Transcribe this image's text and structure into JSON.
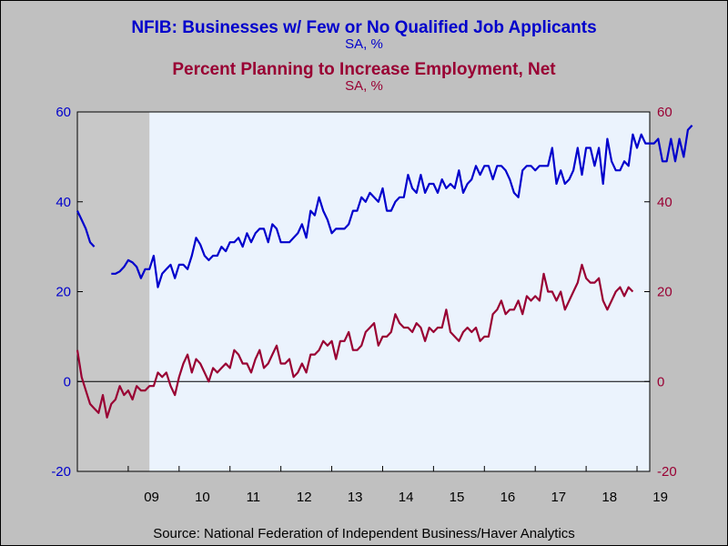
{
  "titles": {
    "series1_title": "NFIB: Businesses w/ Few or No Qualified Job Applicants",
    "series1_units": "SA, %",
    "series2_title": "Percent Planning to Increase Employment, Net",
    "series2_units": "SA, %"
  },
  "source": "Source:  National Federation of Independent Business/Haver Analytics",
  "colors": {
    "series1": "#0000cc",
    "series2": "#990033",
    "plot_bg": "#ebf3fd",
    "recession": "#c8c8c8",
    "page_bg": "#c0c0c0"
  },
  "chart_data": {
    "type": "line",
    "x_ticks": [
      "09",
      "10",
      "11",
      "12",
      "13",
      "14",
      "15",
      "16",
      "17",
      "18",
      "19"
    ],
    "y_left": {
      "ticks": [
        "-20",
        "0",
        "20",
        "40",
        "60"
      ],
      "range": [
        -20,
        60
      ]
    },
    "y_right": {
      "ticks": [
        "-20",
        "0",
        "20",
        "40",
        "60"
      ],
      "range": [
        -20,
        60
      ]
    },
    "x_range": [
      "2008-01",
      "2019-04"
    ],
    "zero_line": true,
    "recession_shading": {
      "start": "2008-01",
      "end": "2009-06"
    },
    "series": [
      {
        "start": "2008-01",
        "values": [
          38,
          36,
          34,
          31,
          30,
          null,
          null,
          null,
          24,
          24,
          24.5,
          25.5,
          27,
          26.5,
          25.5,
          23,
          25,
          25,
          28,
          21,
          24,
          25,
          26,
          23,
          26,
          26,
          25,
          28,
          32,
          30.5,
          28,
          27,
          28,
          28,
          30,
          29,
          31,
          31,
          32,
          30,
          33,
          31,
          33,
          34,
          34,
          31,
          35,
          34,
          31,
          31,
          31,
          32,
          33,
          35,
          32,
          38,
          37,
          41,
          38,
          36,
          33,
          34,
          34,
          34,
          35,
          38,
          38,
          41,
          40,
          42,
          41,
          40,
          43,
          38,
          38,
          40,
          41,
          41,
          46,
          43,
          42,
          46,
          42,
          44,
          44,
          42,
          45,
          43,
          44,
          43,
          47,
          42,
          44,
          45,
          48,
          46,
          48,
          48,
          45,
          48,
          48,
          47,
          45,
          42,
          41,
          47,
          48,
          48,
          47,
          48,
          48,
          48,
          52,
          44,
          47,
          44,
          45,
          47,
          52,
          46,
          52,
          52,
          48,
          52,
          44,
          54,
          49,
          47,
          47,
          49,
          48,
          55,
          52,
          55,
          53,
          53,
          53,
          54,
          49,
          49,
          54,
          49,
          54,
          50,
          56,
          57
        ]
      },
      {
        "start": "2008-01",
        "values": [
          7,
          1,
          -2,
          -5,
          -6,
          -7,
          -3,
          -8,
          -5,
          -4,
          -1,
          -3,
          -2,
          -4,
          -1,
          -2,
          -2,
          -1,
          -1,
          2,
          1,
          2,
          -1,
          -3,
          1,
          4,
          6,
          2,
          5,
          4,
          2,
          0,
          3,
          2,
          3,
          4,
          3,
          7,
          6,
          4,
          4,
          2,
          5,
          7,
          3,
          4,
          6,
          8,
          4,
          4,
          5,
          1,
          2,
          4,
          2,
          6,
          6,
          7,
          9,
          8,
          9,
          5,
          9,
          9,
          11,
          7,
          7,
          8,
          11,
          12,
          13,
          8,
          10,
          10,
          11,
          15,
          13,
          12,
          12,
          11,
          13,
          12,
          9,
          12,
          11,
          12,
          12,
          16,
          11,
          10,
          9,
          11,
          12,
          11,
          12,
          9,
          10,
          10,
          15,
          16,
          18,
          15,
          16,
          16,
          18,
          15,
          19,
          18,
          19,
          18,
          24,
          20,
          20,
          18,
          20,
          16,
          18,
          20,
          22,
          26,
          23,
          22,
          22,
          23,
          18,
          16,
          18,
          20,
          21,
          19,
          21,
          20
        ]
      }
    ]
  }
}
